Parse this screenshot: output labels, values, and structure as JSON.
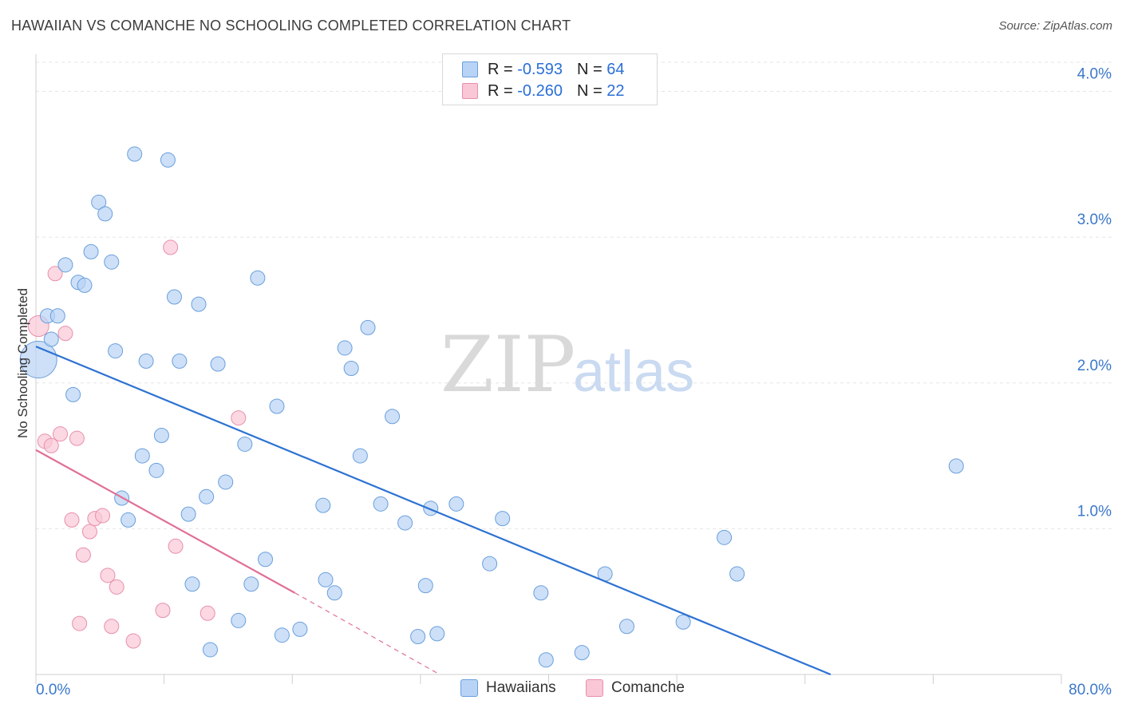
{
  "title": "HAWAIIAN VS COMANCHE NO SCHOOLING COMPLETED CORRELATION CHART",
  "source": "Source: ZipAtlas.com",
  "legend": {
    "rows": [
      {
        "r_label": "R =",
        "r_value": "-0.593",
        "n_label": "N =",
        "n_value": "64"
      },
      {
        "r_label": "R =",
        "r_value": "-0.260",
        "n_label": "N =",
        "n_value": "22"
      }
    ]
  },
  "bottom_legend": {
    "hawaiians": "Hawaiians",
    "comanche": "Comanche"
  },
  "watermark": {
    "zip": "ZIP",
    "atlas": "atlas"
  },
  "colors": {
    "hawaiians_fill": "#b8d3f5",
    "hawaiians_stroke": "#6a9fdc",
    "hawaiians_line": "#2d72d2",
    "comanche_fill": "#f9c7d6",
    "comanche_stroke": "#e98fab",
    "comanche_line": "#e07096",
    "grid": "#e5e5e5",
    "axis_text": "#3b78c9"
  },
  "chart_data": {
    "type": "scatter",
    "title": "HAWAIIAN VS COMANCHE NO SCHOOLING COMPLETED CORRELATION CHART",
    "xlabel": "",
    "ylabel": "No Schooling Completed",
    "xlim": [
      0,
      80
    ],
    "ylim": [
      0,
      4.2
    ],
    "x_tick_labels": [
      "0.0%",
      "80.0%"
    ],
    "y_ticks": [
      1.0,
      2.0,
      3.0,
      4.0
    ],
    "y_tick_labels": [
      "1.0%",
      "2.0%",
      "3.0%",
      "4.0%"
    ],
    "grid": true,
    "series": [
      {
        "name": "Hawaiians",
        "r": -0.593,
        "n": 64,
        "trend": {
          "x0": 0,
          "y0": 2.25,
          "x1": 62,
          "y1": 0.0
        },
        "points": [
          [
            0.2,
            2.16
          ],
          [
            0.9,
            2.46
          ],
          [
            1.2,
            2.3
          ],
          [
            1.7,
            2.46
          ],
          [
            2.3,
            2.81
          ],
          [
            2.9,
            1.92
          ],
          [
            3.3,
            2.69
          ],
          [
            3.8,
            2.67
          ],
          [
            4.3,
            2.9
          ],
          [
            4.9,
            3.24
          ],
          [
            5.4,
            3.16
          ],
          [
            5.9,
            2.83
          ],
          [
            6.2,
            2.22
          ],
          [
            6.7,
            1.21
          ],
          [
            7.2,
            1.06
          ],
          [
            7.7,
            3.57
          ],
          [
            8.3,
            1.5
          ],
          [
            8.6,
            2.15
          ],
          [
            9.4,
            1.4
          ],
          [
            9.8,
            1.64
          ],
          [
            10.3,
            3.53
          ],
          [
            10.8,
            2.59
          ],
          [
            11.2,
            2.15
          ],
          [
            11.9,
            1.1
          ],
          [
            12.2,
            0.62
          ],
          [
            12.7,
            2.54
          ],
          [
            13.3,
            1.22
          ],
          [
            13.6,
            0.17
          ],
          [
            14.2,
            2.13
          ],
          [
            14.8,
            1.32
          ],
          [
            15.8,
            0.37
          ],
          [
            16.3,
            1.58
          ],
          [
            16.8,
            0.62
          ],
          [
            17.3,
            2.72
          ],
          [
            17.9,
            0.79
          ],
          [
            18.8,
            1.84
          ],
          [
            19.2,
            0.27
          ],
          [
            20.6,
            0.31
          ],
          [
            22.4,
            1.16
          ],
          [
            22.6,
            0.65
          ],
          [
            23.3,
            0.56
          ],
          [
            24.1,
            2.24
          ],
          [
            24.6,
            2.1
          ],
          [
            25.3,
            1.5
          ],
          [
            25.9,
            2.38
          ],
          [
            26.9,
            1.17
          ],
          [
            27.8,
            1.77
          ],
          [
            28.8,
            1.04
          ],
          [
            29.8,
            0.26
          ],
          [
            30.4,
            0.61
          ],
          [
            30.8,
            1.14
          ],
          [
            31.3,
            0.28
          ],
          [
            32.8,
            1.17
          ],
          [
            35.4,
            0.76
          ],
          [
            36.4,
            1.07
          ],
          [
            39.4,
            0.56
          ],
          [
            39.8,
            0.1
          ],
          [
            42.6,
            0.15
          ],
          [
            44.4,
            0.69
          ],
          [
            46.1,
            0.33
          ],
          [
            50.5,
            0.36
          ],
          [
            53.7,
            0.94
          ],
          [
            54.7,
            0.69
          ],
          [
            71.8,
            1.43
          ]
        ]
      },
      {
        "name": "Comanche",
        "r": -0.26,
        "n": 22,
        "trend": {
          "x0": 0,
          "y0": 1.54,
          "x1": 20.2,
          "y1": 0.56,
          "x_dash_end": 31.5,
          "y_dash_end": 0.0
        },
        "points": [
          [
            0.2,
            2.39
          ],
          [
            0.7,
            1.6
          ],
          [
            1.2,
            1.57
          ],
          [
            1.5,
            2.75
          ],
          [
            1.9,
            1.65
          ],
          [
            2.3,
            2.34
          ],
          [
            2.8,
            1.06
          ],
          [
            3.2,
            1.62
          ],
          [
            3.4,
            0.35
          ],
          [
            3.7,
            0.82
          ],
          [
            4.2,
            0.98
          ],
          [
            4.6,
            1.07
          ],
          [
            5.2,
            1.09
          ],
          [
            5.6,
            0.68
          ],
          [
            5.9,
            0.33
          ],
          [
            6.3,
            0.6
          ],
          [
            7.6,
            0.23
          ],
          [
            9.9,
            0.44
          ],
          [
            10.5,
            2.93
          ],
          [
            10.9,
            0.88
          ],
          [
            13.4,
            0.42
          ],
          [
            15.8,
            1.76
          ]
        ]
      }
    ]
  }
}
